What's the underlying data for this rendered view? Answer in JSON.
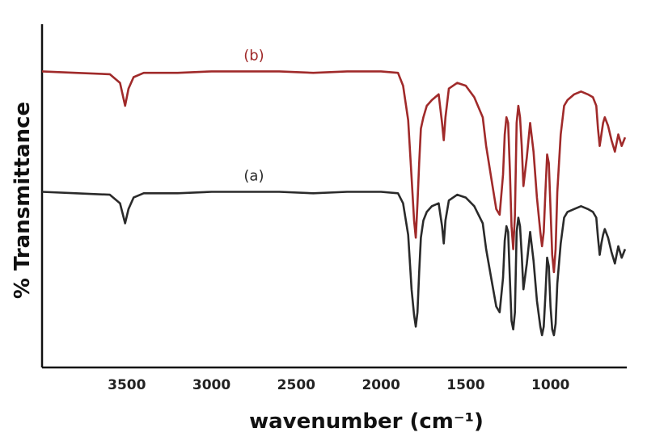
{
  "chart_data": {
    "type": "line",
    "xlabel": "wavenumber (cm⁻¹)",
    "ylabel": "% Transmittance",
    "xlim": [
      4000,
      550
    ],
    "x_reversed": true,
    "ylim": [
      0,
      100
    ],
    "grid": false,
    "x_ticks": [
      3500,
      3000,
      2500,
      2000,
      1500,
      1000
    ],
    "x_tick_labels": [
      "3500",
      "3000",
      "2500",
      "2000",
      "1500",
      "1000"
    ],
    "series": [
      {
        "name": "(b)",
        "color": "#a02a2a",
        "x": [
          4000,
          3800,
          3600,
          3540,
          3510,
          3490,
          3460,
          3400,
          3200,
          3000,
          2800,
          2600,
          2400,
          2200,
          2000,
          1900,
          1870,
          1840,
          1820,
          1805,
          1795,
          1785,
          1775,
          1765,
          1750,
          1730,
          1700,
          1660,
          1640,
          1630,
          1620,
          1600,
          1550,
          1500,
          1450,
          1400,
          1380,
          1350,
          1320,
          1300,
          1280,
          1270,
          1260,
          1250,
          1240,
          1230,
          1220,
          1210,
          1200,
          1190,
          1180,
          1170,
          1160,
          1140,
          1120,
          1100,
          1080,
          1060,
          1050,
          1040,
          1030,
          1020,
          1010,
          1000,
          990,
          980,
          970,
          960,
          940,
          920,
          900,
          860,
          820,
          780,
          750,
          730,
          720,
          710,
          700,
          690,
          680,
          660,
          640,
          620,
          600,
          580,
          560
        ],
        "y": [
          92,
          91.5,
          91,
          88,
          80,
          86,
          90,
          91.5,
          91.5,
          92,
          92,
          92,
          91.5,
          92,
          92,
          91.5,
          87,
          75,
          55,
          40,
          34,
          46,
          60,
          72,
          76,
          80,
          82,
          84,
          74,
          68,
          76,
          86,
          88,
          87,
          83,
          76,
          66,
          55,
          44,
          42,
          56,
          70,
          76,
          74,
          58,
          38,
          30,
          42,
          74,
          80,
          76,
          66,
          52,
          62,
          74,
          64,
          48,
          36,
          31,
          36,
          50,
          63,
          60,
          44,
          28,
          22,
          30,
          50,
          70,
          80,
          82,
          84,
          85,
          84,
          83,
          80,
          72,
          66,
          70,
          74,
          76,
          73,
          68,
          64,
          70,
          66,
          69
        ]
      },
      {
        "name": "(a)",
        "color": "#2a2a2a",
        "x": [
          4000,
          3800,
          3600,
          3540,
          3510,
          3490,
          3460,
          3400,
          3200,
          3000,
          2800,
          2600,
          2400,
          2200,
          2000,
          1900,
          1870,
          1840,
          1820,
          1805,
          1795,
          1785,
          1775,
          1765,
          1750,
          1730,
          1700,
          1660,
          1640,
          1630,
          1620,
          1600,
          1550,
          1500,
          1450,
          1400,
          1380,
          1350,
          1320,
          1300,
          1280,
          1270,
          1260,
          1250,
          1240,
          1230,
          1220,
          1210,
          1200,
          1190,
          1180,
          1170,
          1160,
          1140,
          1120,
          1100,
          1080,
          1060,
          1050,
          1040,
          1030,
          1020,
          1010,
          1000,
          990,
          980,
          970,
          960,
          940,
          920,
          900,
          860,
          820,
          780,
          750,
          730,
          720,
          710,
          700,
          690,
          680,
          660,
          640,
          620,
          600,
          580,
          560
        ],
        "y": [
          50,
          49.5,
          49,
          46,
          39,
          44,
          48,
          49.5,
          49.5,
          50,
          50,
          50,
          49.5,
          50,
          50,
          49.5,
          46,
          35,
          16,
          7,
          3,
          8,
          22,
          34,
          40,
          43,
          45,
          46,
          38,
          32,
          40,
          47,
          49,
          48,
          45,
          39,
          30,
          20,
          10,
          8,
          20,
          33,
          38,
          36,
          20,
          5,
          2,
          8,
          36,
          41,
          38,
          28,
          16,
          25,
          36,
          26,
          12,
          3,
          0,
          3,
          14,
          27,
          24,
          10,
          2,
          0,
          4,
          18,
          32,
          41,
          43,
          44,
          45,
          44,
          43,
          41,
          34,
          28,
          32,
          35,
          37,
          34,
          29,
          25,
          31,
          27,
          30
        ]
      }
    ]
  }
}
